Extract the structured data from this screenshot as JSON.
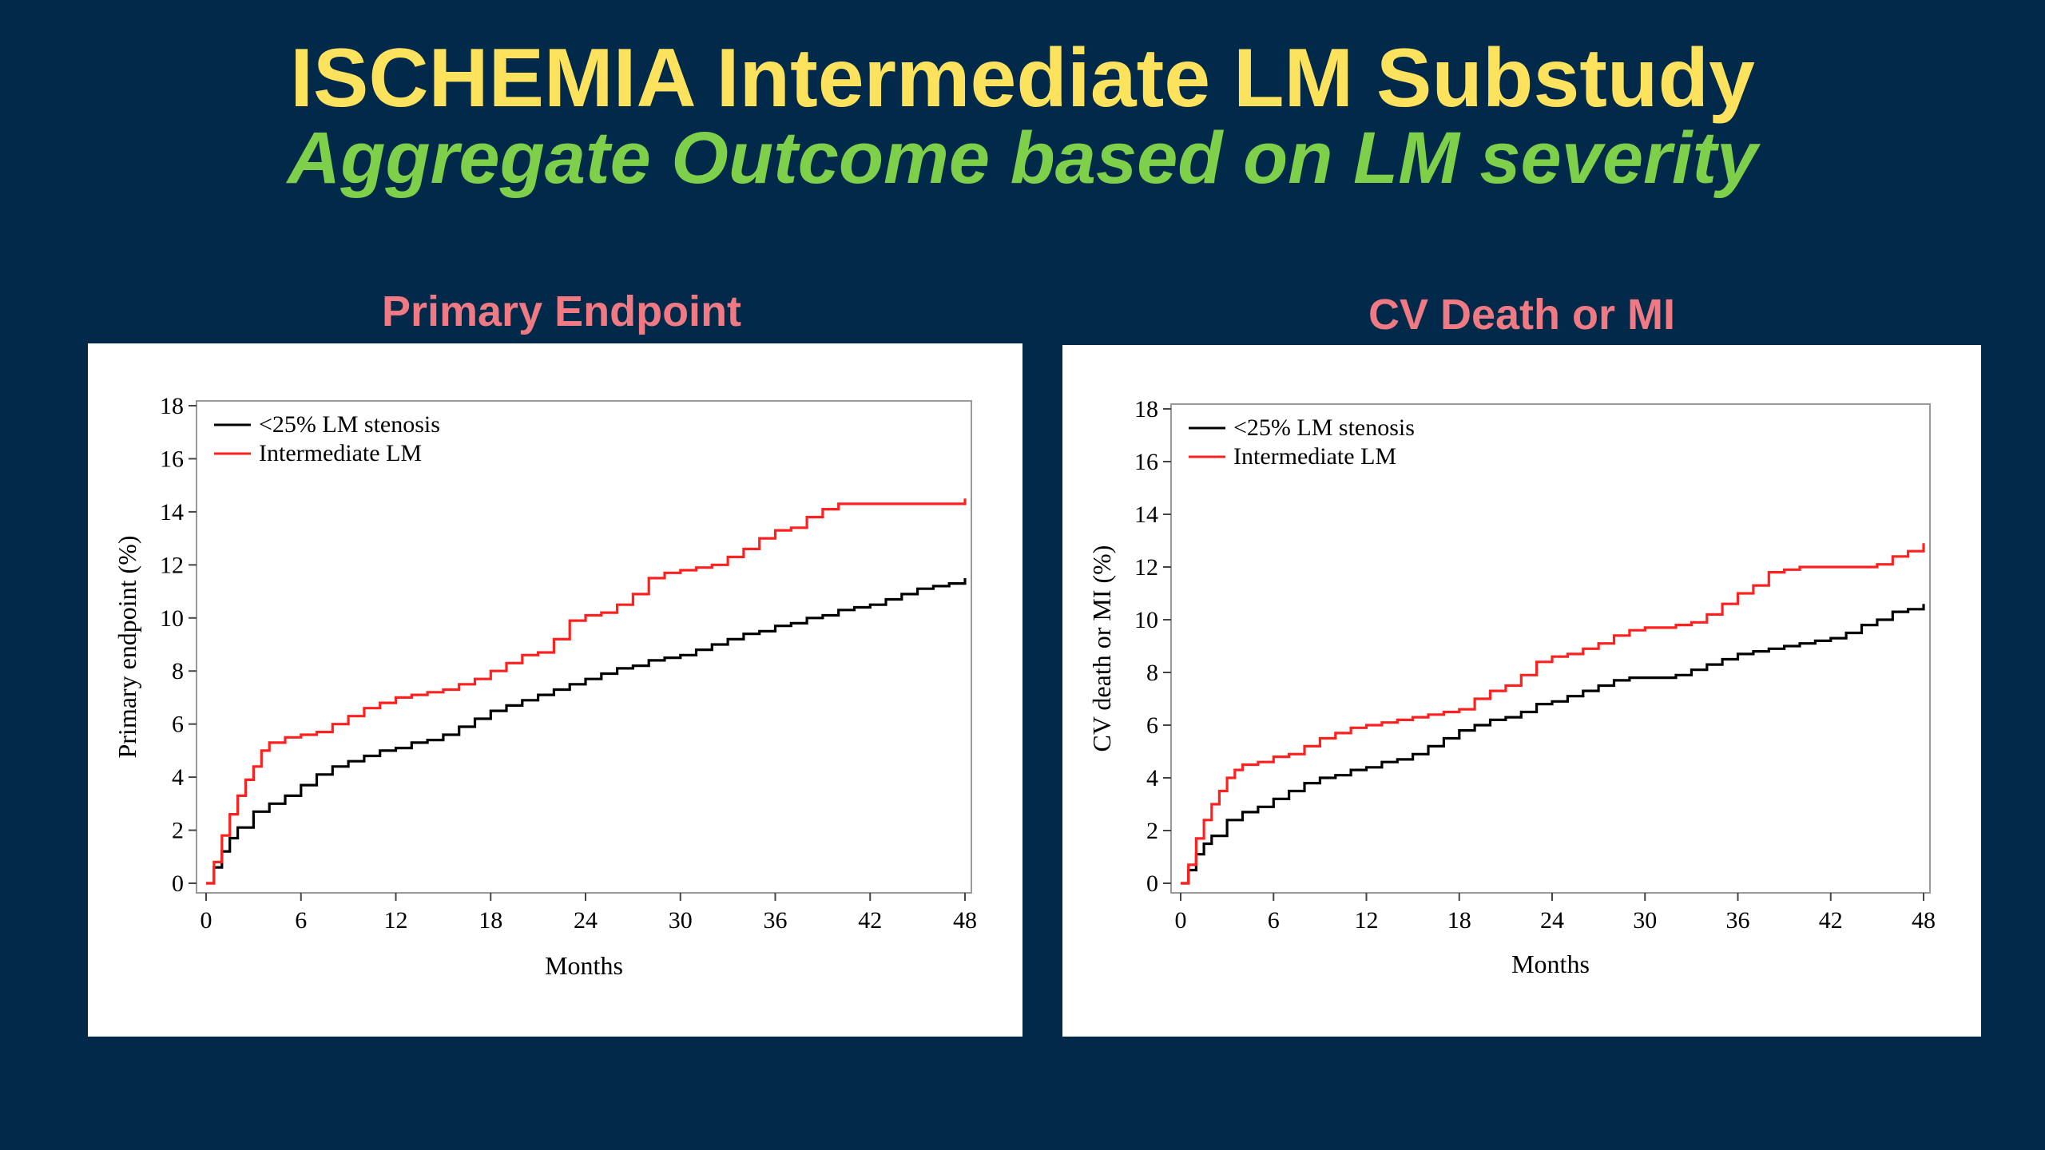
{
  "slide": {
    "title": "ISCHEMIA Intermediate LM Substudy",
    "subtitle": "Aggregate Outcome based on LM severity"
  },
  "colors": {
    "background": "#01294a",
    "title": "#fde25e",
    "subtitle": "#7ed04b",
    "panel_title": "#f07a84",
    "series_ref": "#000000",
    "series_int": "#ff2020"
  },
  "chart_data": [
    {
      "type": "line",
      "panel_title": "Primary Endpoint",
      "xlabel": "Months",
      "ylabel": "Primary endpoint (%)",
      "xlim": [
        0,
        48
      ],
      "ylim": [
        0,
        18
      ],
      "x_ticks": [
        0,
        6,
        12,
        18,
        24,
        30,
        36,
        42,
        48
      ],
      "y_ticks": [
        0,
        2,
        4,
        6,
        8,
        10,
        12,
        14,
        16,
        18
      ],
      "grid": false,
      "legend_position": "top-left",
      "series": [
        {
          "name": "<25% LM stenosis",
          "color": "#000000",
          "x": [
            0,
            0.5,
            1,
            1.5,
            2,
            3,
            4,
            5,
            6,
            7,
            8,
            9,
            10,
            11,
            12,
            13,
            14,
            15,
            16,
            17,
            18,
            19,
            20,
            21,
            22,
            23,
            24,
            25,
            26,
            27,
            28,
            29,
            30,
            31,
            32,
            33,
            34,
            35,
            36,
            37,
            38,
            39,
            40,
            41,
            42,
            43,
            44,
            45,
            46,
            47,
            48
          ],
          "y": [
            0,
            0.6,
            1.2,
            1.7,
            2.1,
            2.7,
            3.0,
            3.3,
            3.7,
            4.1,
            4.4,
            4.6,
            4.8,
            5.0,
            5.1,
            5.3,
            5.4,
            5.6,
            5.9,
            6.2,
            6.5,
            6.7,
            6.9,
            7.1,
            7.3,
            7.5,
            7.7,
            7.9,
            8.1,
            8.2,
            8.4,
            8.5,
            8.6,
            8.8,
            9.0,
            9.2,
            9.4,
            9.5,
            9.7,
            9.8,
            10.0,
            10.1,
            10.3,
            10.4,
            10.5,
            10.7,
            10.9,
            11.1,
            11.2,
            11.3,
            11.5
          ]
        },
        {
          "name": "Intermediate LM",
          "color": "#ff2020",
          "x": [
            0,
            0.5,
            1,
            1.5,
            2,
            2.5,
            3,
            3.5,
            4,
            5,
            6,
            7,
            8,
            9,
            10,
            11,
            12,
            13,
            14,
            15,
            16,
            17,
            18,
            19,
            20,
            21,
            22,
            23,
            24,
            25,
            26,
            27,
            28,
            29,
            30,
            31,
            32,
            33,
            34,
            35,
            36,
            37,
            38,
            39,
            40,
            41,
            42,
            43,
            44,
            45,
            46,
            47,
            48
          ],
          "y": [
            0,
            0.8,
            1.8,
            2.6,
            3.3,
            3.9,
            4.4,
            5.0,
            5.3,
            5.5,
            5.6,
            5.7,
            6.0,
            6.3,
            6.6,
            6.8,
            7.0,
            7.1,
            7.2,
            7.3,
            7.5,
            7.7,
            8.0,
            8.3,
            8.6,
            8.7,
            9.2,
            9.9,
            10.1,
            10.2,
            10.5,
            10.9,
            11.5,
            11.7,
            11.8,
            11.9,
            12.0,
            12.3,
            12.6,
            13.0,
            13.3,
            13.4,
            13.8,
            14.1,
            14.3,
            14.3,
            14.3,
            14.3,
            14.3,
            14.3,
            14.3,
            14.3,
            14.5
          ]
        }
      ]
    },
    {
      "type": "line",
      "panel_title": "CV Death or MI",
      "xlabel": "Months",
      "ylabel": "CV death or MI (%)",
      "xlim": [
        0,
        48
      ],
      "ylim": [
        0,
        18
      ],
      "x_ticks": [
        0,
        6,
        12,
        18,
        24,
        30,
        36,
        42,
        48
      ],
      "y_ticks": [
        0,
        2,
        4,
        6,
        8,
        10,
        12,
        14,
        16,
        18
      ],
      "grid": false,
      "legend_position": "top-left",
      "series": [
        {
          "name": "<25% LM stenosis",
          "color": "#000000",
          "x": [
            0,
            0.5,
            1,
            1.5,
            2,
            3,
            4,
            5,
            6,
            7,
            8,
            9,
            10,
            11,
            12,
            13,
            14,
            15,
            16,
            17,
            18,
            19,
            20,
            21,
            22,
            23,
            24,
            25,
            26,
            27,
            28,
            29,
            30,
            31,
            32,
            33,
            34,
            35,
            36,
            37,
            38,
            39,
            40,
            41,
            42,
            43,
            44,
            45,
            46,
            47,
            48
          ],
          "y": [
            0,
            0.5,
            1.1,
            1.5,
            1.8,
            2.4,
            2.7,
            2.9,
            3.2,
            3.5,
            3.8,
            4.0,
            4.1,
            4.3,
            4.4,
            4.6,
            4.7,
            4.9,
            5.2,
            5.5,
            5.8,
            6.0,
            6.2,
            6.3,
            6.5,
            6.8,
            6.9,
            7.1,
            7.3,
            7.5,
            7.7,
            7.8,
            7.8,
            7.8,
            7.9,
            8.1,
            8.3,
            8.5,
            8.7,
            8.8,
            8.9,
            9.0,
            9.1,
            9.2,
            9.3,
            9.5,
            9.8,
            10.0,
            10.3,
            10.4,
            10.6
          ]
        },
        {
          "name": "Intermediate LM",
          "color": "#ff2020",
          "x": [
            0,
            0.5,
            1,
            1.5,
            2,
            2.5,
            3,
            3.5,
            4,
            5,
            6,
            7,
            8,
            9,
            10,
            11,
            12,
            13,
            14,
            15,
            16,
            17,
            18,
            19,
            20,
            21,
            22,
            23,
            24,
            25,
            26,
            27,
            28,
            29,
            30,
            31,
            32,
            33,
            34,
            35,
            36,
            37,
            38,
            39,
            40,
            41,
            42,
            43,
            44,
            45,
            46,
            47,
            48
          ],
          "y": [
            0,
            0.7,
            1.7,
            2.4,
            3.0,
            3.5,
            4.0,
            4.3,
            4.5,
            4.6,
            4.8,
            4.9,
            5.2,
            5.5,
            5.7,
            5.9,
            6.0,
            6.1,
            6.2,
            6.3,
            6.4,
            6.5,
            6.6,
            7.0,
            7.3,
            7.5,
            7.9,
            8.4,
            8.6,
            8.7,
            8.9,
            9.1,
            9.4,
            9.6,
            9.7,
            9.7,
            9.8,
            9.9,
            10.2,
            10.6,
            11.0,
            11.3,
            11.8,
            11.9,
            12.0,
            12.0,
            12.0,
            12.0,
            12.0,
            12.1,
            12.4,
            12.6,
            12.9
          ]
        }
      ]
    }
  ]
}
